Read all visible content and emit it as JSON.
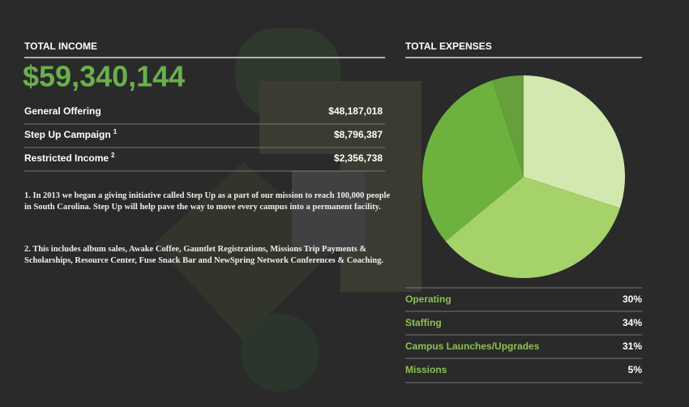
{
  "income": {
    "title": "TOTAL INCOME",
    "total": "$59,340,144",
    "rows": [
      {
        "label": "General Offering",
        "value": "$48,187,018"
      },
      {
        "label": "Step Up Campaign",
        "note": "1",
        "value": "$8,796,387"
      },
      {
        "label": "Restricted Income",
        "note": "2",
        "value": "$2,356,738"
      }
    ],
    "notes": [
      "1. In 2013 we began a giving initiative called Step Up as a part of our mission to reach 100,000 people in South Carolina. Step Up will help pave the way to move every campus into a permanent facility.",
      "2. This includes album sales, Awake Coffee, Gauntlet Registrations, Missions Trip Payments & Scholarships, Resource Center, Fuse Snack Bar and NewSpring Network Conferences & Coaching."
    ]
  },
  "chart_data": {
    "type": "pie",
    "title": "TOTAL EXPENSES",
    "categories": [
      "Operating",
      "Staffing",
      "Campus Launches/Upgrades",
      "Missions"
    ],
    "values": [
      30,
      34,
      31,
      5
    ],
    "value_labels": [
      "30%",
      "34%",
      "31%",
      "5%"
    ],
    "colors": [
      "#d3e8ae",
      "#a6d26a",
      "#6db23f",
      "#65a03a"
    ]
  }
}
